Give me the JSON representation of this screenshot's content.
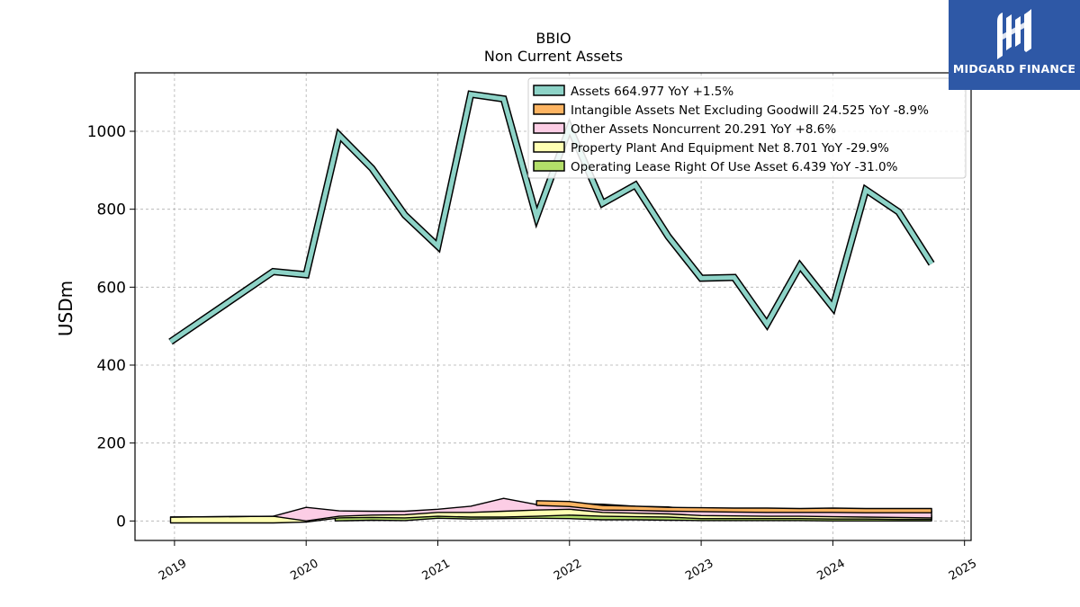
{
  "chart_data": {
    "type": "line",
    "title": "BBIO",
    "subtitle": "Non Current  Assets",
    "ylabel": "USDm",
    "xlim": [
      2018.7,
      2025.05
    ],
    "ylim": [
      -50,
      1150
    ],
    "yticks": [
      0,
      200,
      400,
      600,
      800,
      1000
    ],
    "xticks": [
      "2019",
      "2020",
      "2021",
      "2022",
      "2023",
      "2024",
      "2025"
    ],
    "grid": true,
    "legend_position": "top-right",
    "series": [
      {
        "name": "Assets  664.977 YoY +1.5%",
        "color": "#8dd3c7",
        "style": "line",
        "points": [
          [
            2018.97,
            460
          ],
          [
            2019.75,
            640
          ],
          [
            2020.0,
            632
          ],
          [
            2020.25,
            990
          ],
          [
            2020.5,
            905
          ],
          [
            2020.75,
            785
          ],
          [
            2021.0,
            705
          ],
          [
            2021.25,
            1095
          ],
          [
            2021.5,
            1083
          ],
          [
            2021.75,
            780
          ],
          [
            2022.0,
            1010
          ],
          [
            2022.25,
            815
          ],
          [
            2022.5,
            862
          ],
          [
            2022.75,
            730
          ],
          [
            2023.0,
            623
          ],
          [
            2023.25,
            625
          ],
          [
            2023.5,
            505
          ],
          [
            2023.75,
            655
          ],
          [
            2024.0,
            548
          ],
          [
            2024.25,
            850
          ],
          [
            2024.5,
            793
          ],
          [
            2024.75,
            660
          ]
        ]
      },
      {
        "name": "Intangible Assets Net Excluding Goodwill  24.525 YoY -8.9%",
        "color": "#fdb462",
        "style": "band",
        "points": [
          [
            2021.75,
            52,
            40
          ],
          [
            2022.0,
            50,
            37
          ],
          [
            2022.25,
            40,
            28
          ],
          [
            2022.5,
            38,
            27
          ],
          [
            2022.75,
            35,
            25
          ],
          [
            2023.0,
            34,
            24
          ],
          [
            2023.25,
            33,
            23
          ],
          [
            2023.5,
            33,
            22
          ],
          [
            2023.75,
            32,
            22
          ],
          [
            2024.0,
            33,
            22
          ],
          [
            2024.25,
            32,
            21
          ],
          [
            2024.5,
            32,
            21
          ],
          [
            2024.75,
            32,
            21
          ]
        ]
      },
      {
        "name": "Other Assets Noncurrent  20.291 YoY +8.6%",
        "color": "#fccde5",
        "style": "band",
        "points": [
          [
            2018.97,
            10,
            10
          ],
          [
            2019.75,
            12,
            12
          ],
          [
            2020.0,
            35,
            0
          ],
          [
            2020.25,
            26,
            12
          ],
          [
            2020.5,
            25,
            15
          ],
          [
            2020.75,
            25,
            16
          ],
          [
            2021.0,
            30,
            22
          ],
          [
            2021.25,
            38,
            22
          ],
          [
            2021.5,
            58,
            25
          ],
          [
            2021.75,
            42,
            28
          ],
          [
            2022.0,
            45,
            30
          ],
          [
            2022.25,
            43,
            22
          ],
          [
            2022.5,
            38,
            20
          ],
          [
            2022.75,
            36,
            18
          ],
          [
            2023.0,
            27,
            14
          ],
          [
            2023.25,
            26,
            13
          ],
          [
            2023.5,
            26,
            12
          ],
          [
            2023.75,
            26,
            12
          ],
          [
            2024.0,
            28,
            11
          ],
          [
            2024.25,
            27,
            10
          ],
          [
            2024.5,
            27,
            9
          ],
          [
            2024.75,
            26,
            8
          ]
        ]
      },
      {
        "name": "Property Plant And Equipment Net  8.701 YoY -29.9%",
        "color": "#ffffb3",
        "style": "band",
        "points": [
          [
            2018.97,
            10,
            -5
          ],
          [
            2019.75,
            12,
            -5
          ],
          [
            2020.0,
            12,
            -3
          ],
          [
            2020.25,
            22,
            8
          ],
          [
            2020.5,
            22,
            9
          ],
          [
            2020.75,
            22,
            8
          ],
          [
            2021.0,
            25,
            12
          ],
          [
            2021.25,
            28,
            10
          ],
          [
            2021.5,
            28,
            10
          ],
          [
            2021.75,
            30,
            12
          ],
          [
            2022.0,
            35,
            15
          ],
          [
            2022.25,
            28,
            12
          ],
          [
            2022.5,
            22,
            11
          ],
          [
            2022.75,
            20,
            10
          ],
          [
            2023.0,
            18,
            6
          ],
          [
            2023.25,
            17,
            6
          ],
          [
            2023.5,
            16,
            6
          ],
          [
            2023.75,
            16,
            6
          ],
          [
            2024.0,
            16,
            5
          ],
          [
            2024.25,
            15,
            5
          ],
          [
            2024.5,
            15,
            4
          ],
          [
            2024.75,
            15,
            4
          ]
        ]
      },
      {
        "name": "Operating Lease Right Of Use Asset  6.439 YoY -31.0%",
        "color": "#b3de69",
        "style": "band",
        "points": [
          [
            2020.22,
            20,
            0
          ],
          [
            2020.5,
            20,
            2
          ],
          [
            2020.75,
            20,
            1
          ],
          [
            2021.0,
            25,
            7
          ],
          [
            2021.25,
            22,
            5
          ],
          [
            2021.5,
            22,
            6
          ],
          [
            2021.75,
            24,
            7
          ],
          [
            2022.0,
            22,
            6
          ],
          [
            2022.25,
            19,
            3
          ],
          [
            2022.5,
            18,
            3
          ],
          [
            2022.75,
            17,
            2
          ],
          [
            2023.0,
            16,
            1
          ],
          [
            2023.25,
            15,
            1
          ],
          [
            2023.5,
            15,
            1
          ],
          [
            2023.75,
            14,
            1
          ],
          [
            2024.0,
            13,
            0
          ],
          [
            2024.25,
            12,
            0
          ],
          [
            2024.5,
            11,
            0
          ],
          [
            2024.75,
            10,
            0
          ]
        ]
      }
    ]
  },
  "logo": {
    "text": "MIDGARD FINANCE"
  }
}
